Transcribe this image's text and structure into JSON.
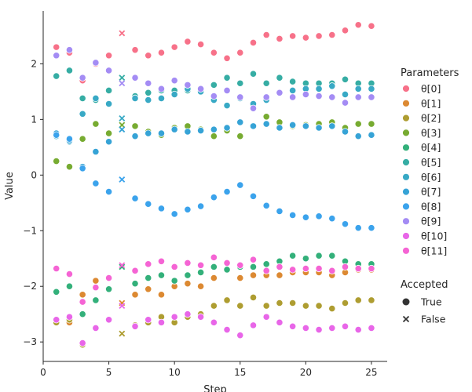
{
  "chart_data": {
    "type": "scatter",
    "xlabel": "Step",
    "ylabel": "Value",
    "xlim": [
      0,
      26.2
    ],
    "ylim": [
      -3.35,
      2.95
    ],
    "xticks": [
      0,
      5,
      10,
      15,
      20,
      25
    ],
    "yticks": [
      -3,
      -2,
      -1,
      0,
      1,
      2
    ],
    "grid": false,
    "legend": {
      "placement": "right",
      "title_parameters": "Parameters",
      "title_accepted": "Accepted",
      "accepted_items": [
        {
          "label": "True",
          "marker": "circle"
        },
        {
          "label": "False",
          "marker": "x"
        }
      ]
    },
    "series": [
      {
        "name": "θ[0]",
        "color": "#f77189",
        "values": [
          2.3,
          2.2,
          1.7,
          2.0,
          2.15,
          2.55,
          2.25,
          2.15,
          2.2,
          2.3,
          2.4,
          2.35,
          2.2,
          2.1,
          2.2,
          2.38,
          2.52,
          2.45,
          2.5,
          2.47,
          2.5,
          2.52,
          2.6,
          2.7,
          2.68
        ]
      },
      {
        "name": "θ[1]",
        "color": "#dc8932",
        "values": [
          -2.6,
          -2.65,
          -2.15,
          -1.9,
          -1.85,
          -2.3,
          -2.15,
          -2.05,
          -2.15,
          -2.0,
          -1.95,
          -2.0,
          -1.85,
          -1.7,
          -1.85,
          -1.8,
          -1.8,
          -1.8,
          -1.75,
          -1.75,
          -1.75,
          -1.8,
          -1.75,
          -1.7,
          -1.7
        ]
      },
      {
        "name": "θ[2]",
        "color": "#ae9d31",
        "values": [
          -2.65,
          -2.6,
          -3.05,
          -2.75,
          -2.6,
          -2.85,
          -2.7,
          -2.65,
          -2.55,
          -2.65,
          -2.55,
          -2.5,
          -2.35,
          -2.25,
          -2.35,
          -2.2,
          -2.35,
          -2.3,
          -2.3,
          -2.35,
          -2.35,
          -2.4,
          -2.3,
          -2.25,
          -2.25
        ]
      },
      {
        "name": "θ[3]",
        "color": "#77ab31",
        "values": [
          0.25,
          0.15,
          0.65,
          0.92,
          0.75,
          0.9,
          0.88,
          0.78,
          0.72,
          0.85,
          0.88,
          0.82,
          0.7,
          0.8,
          0.7,
          0.88,
          1.05,
          0.95,
          0.88,
          0.9,
          0.92,
          0.95,
          0.85,
          0.92,
          0.92
        ]
      },
      {
        "name": "θ[4]",
        "color": "#33b07a",
        "values": [
          -2.1,
          -2.0,
          -2.5,
          -2.25,
          -2.05,
          -1.65,
          -1.95,
          -1.85,
          -1.8,
          -1.9,
          -1.8,
          -1.75,
          -1.65,
          -1.7,
          -1.65,
          -1.65,
          -1.6,
          -1.55,
          -1.45,
          -1.5,
          -1.45,
          -1.45,
          -1.55,
          -1.6,
          -1.6
        ]
      },
      {
        "name": "θ[5]",
        "color": "#36ada4",
        "values": [
          1.78,
          1.88,
          1.38,
          1.35,
          1.52,
          1.75,
          1.42,
          1.48,
          1.52,
          1.52,
          1.52,
          1.5,
          1.62,
          1.75,
          1.65,
          1.82,
          1.65,
          1.75,
          1.68,
          1.65,
          1.65,
          1.65,
          1.72,
          1.65,
          1.65
        ]
      },
      {
        "name": "θ[6]",
        "color": "#38a9c5",
        "values": [
          0.7,
          0.6,
          1.1,
          1.38,
          1.28,
          1.02,
          1.38,
          1.35,
          1.38,
          1.45,
          1.55,
          1.5,
          1.35,
          1.25,
          1.38,
          1.28,
          1.35,
          1.48,
          1.52,
          1.55,
          1.55,
          1.6,
          1.45,
          1.55,
          1.55
        ]
      },
      {
        "name": "θ[7]",
        "color": "#36a3d6",
        "values": [
          0.75,
          0.62,
          0.15,
          0.42,
          0.6,
          0.82,
          0.7,
          0.75,
          0.75,
          0.82,
          0.78,
          0.8,
          0.82,
          0.85,
          0.95,
          0.88,
          0.92,
          0.85,
          0.9,
          0.88,
          0.85,
          0.88,
          0.78,
          0.7,
          0.72
        ]
      },
      {
        "name": "θ[8]",
        "color": "#3ba3ec",
        "values": [
          0.72,
          0.65,
          0.12,
          -0.15,
          -0.3,
          -0.08,
          -0.42,
          -0.52,
          -0.6,
          -0.7,
          -0.62,
          -0.56,
          -0.4,
          -0.3,
          -0.18,
          -0.38,
          -0.55,
          -0.65,
          -0.72,
          -0.76,
          -0.74,
          -0.78,
          -0.88,
          -0.95,
          -0.95
        ]
      },
      {
        "name": "θ[9]",
        "color": "#a48cf4",
        "values": [
          2.15,
          2.25,
          1.75,
          2.02,
          1.88,
          1.65,
          1.75,
          1.65,
          1.55,
          1.7,
          1.62,
          1.55,
          1.42,
          1.52,
          1.4,
          1.2,
          1.4,
          1.48,
          1.4,
          1.45,
          1.42,
          1.4,
          1.3,
          1.4,
          1.4
        ]
      },
      {
        "name": "θ[10]",
        "color": "#e866e8",
        "values": [
          -2.6,
          -2.55,
          -3.02,
          -2.75,
          -2.6,
          -2.35,
          -2.72,
          -2.6,
          -2.65,
          -2.55,
          -2.5,
          -2.55,
          -2.65,
          -2.78,
          -2.88,
          -2.7,
          -2.55,
          -2.65,
          -2.72,
          -2.75,
          -2.78,
          -2.75,
          -2.72,
          -2.78,
          -2.75
        ]
      },
      {
        "name": "θ[11]",
        "color": "#f564d4",
        "values": [
          -1.68,
          -1.78,
          -2.28,
          -2.02,
          -1.85,
          -1.62,
          -1.72,
          -1.6,
          -1.55,
          -1.65,
          -1.58,
          -1.62,
          -1.48,
          -1.58,
          -1.62,
          -1.52,
          -1.72,
          -1.65,
          -1.7,
          -1.68,
          -1.68,
          -1.72,
          -1.65,
          -1.68,
          -1.68
        ]
      }
    ],
    "x": [
      1,
      2,
      3,
      4,
      5,
      6,
      7,
      8,
      9,
      10,
      11,
      12,
      13,
      14,
      15,
      16,
      17,
      18,
      19,
      20,
      21,
      22,
      23,
      24,
      25
    ],
    "accepted": [
      true,
      true,
      true,
      true,
      true,
      false,
      true,
      true,
      true,
      true,
      true,
      true,
      true,
      true,
      true,
      true,
      true,
      true,
      true,
      true,
      true,
      true,
      true,
      true,
      true
    ]
  }
}
